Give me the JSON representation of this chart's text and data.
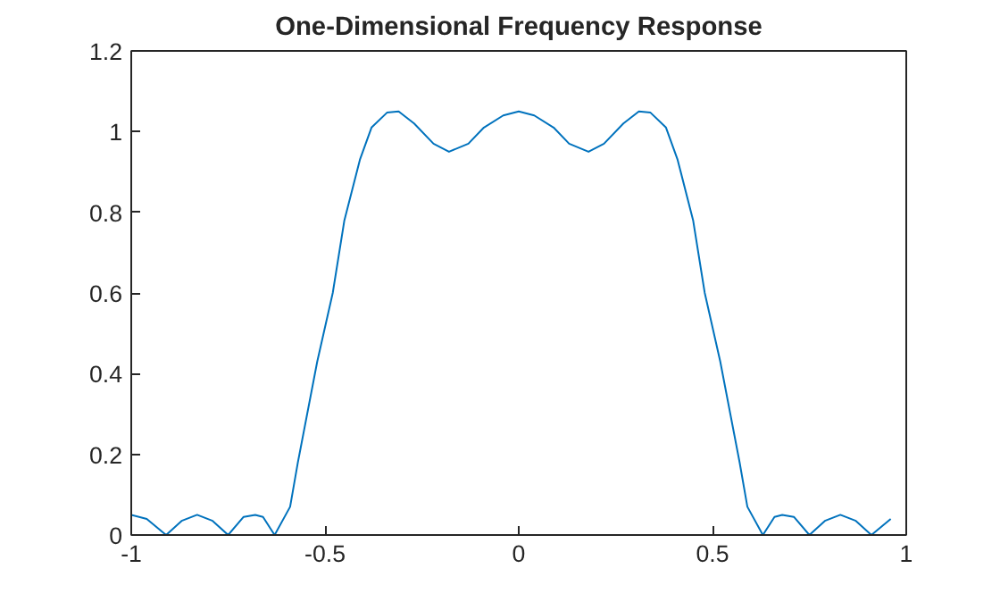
{
  "chart_data": {
    "type": "line",
    "title": "One-Dimensional Frequency Response",
    "x": [
      -1,
      -0.96,
      -0.91,
      -0.87,
      -0.83,
      -0.79,
      -0.75,
      -0.71,
      -0.68,
      -0.66,
      -0.63,
      -0.59,
      -0.57,
      -0.52,
      -0.48,
      -0.45,
      -0.41,
      -0.38,
      -0.34,
      -0.31,
      -0.27,
      -0.22,
      -0.18,
      -0.13,
      -0.09,
      -0.04,
      0,
      0.04,
      0.09,
      0.13,
      0.18,
      0.22,
      0.27,
      0.31,
      0.34,
      0.38,
      0.41,
      0.45,
      0.48,
      0.52,
      0.57,
      0.59,
      0.63,
      0.66,
      0.68,
      0.71,
      0.75,
      0.79,
      0.83,
      0.87,
      0.91,
      0.96
    ],
    "series": [
      {
        "color": "#0072bd",
        "values": [
          0.05,
          0.04,
          0.0,
          0.035,
          0.05,
          0.035,
          0.0,
          0.045,
          0.05,
          0.045,
          0.0,
          0.07,
          0.18,
          0.43,
          0.6,
          0.78,
          0.93,
          1.01,
          1.047,
          1.05,
          1.02,
          0.97,
          0.95,
          0.97,
          1.01,
          1.04,
          1.05,
          1.04,
          1.01,
          0.97,
          0.95,
          0.97,
          1.02,
          1.05,
          1.047,
          1.01,
          0.93,
          0.78,
          0.6,
          0.43,
          0.18,
          0.07,
          0.0,
          0.045,
          0.05,
          0.045,
          0.0,
          0.035,
          0.05,
          0.035,
          0.0,
          0.04
        ]
      }
    ],
    "xlim": [
      -1,
      1
    ],
    "ylim": [
      0,
      1.2
    ],
    "xticks": [
      -1,
      -0.5,
      0,
      0.5,
      1
    ],
    "yticks": [
      0,
      0.2,
      0.4,
      0.6,
      0.8,
      1,
      1.2
    ],
    "grid": false,
    "marker": "none",
    "line_style": "solid"
  }
}
